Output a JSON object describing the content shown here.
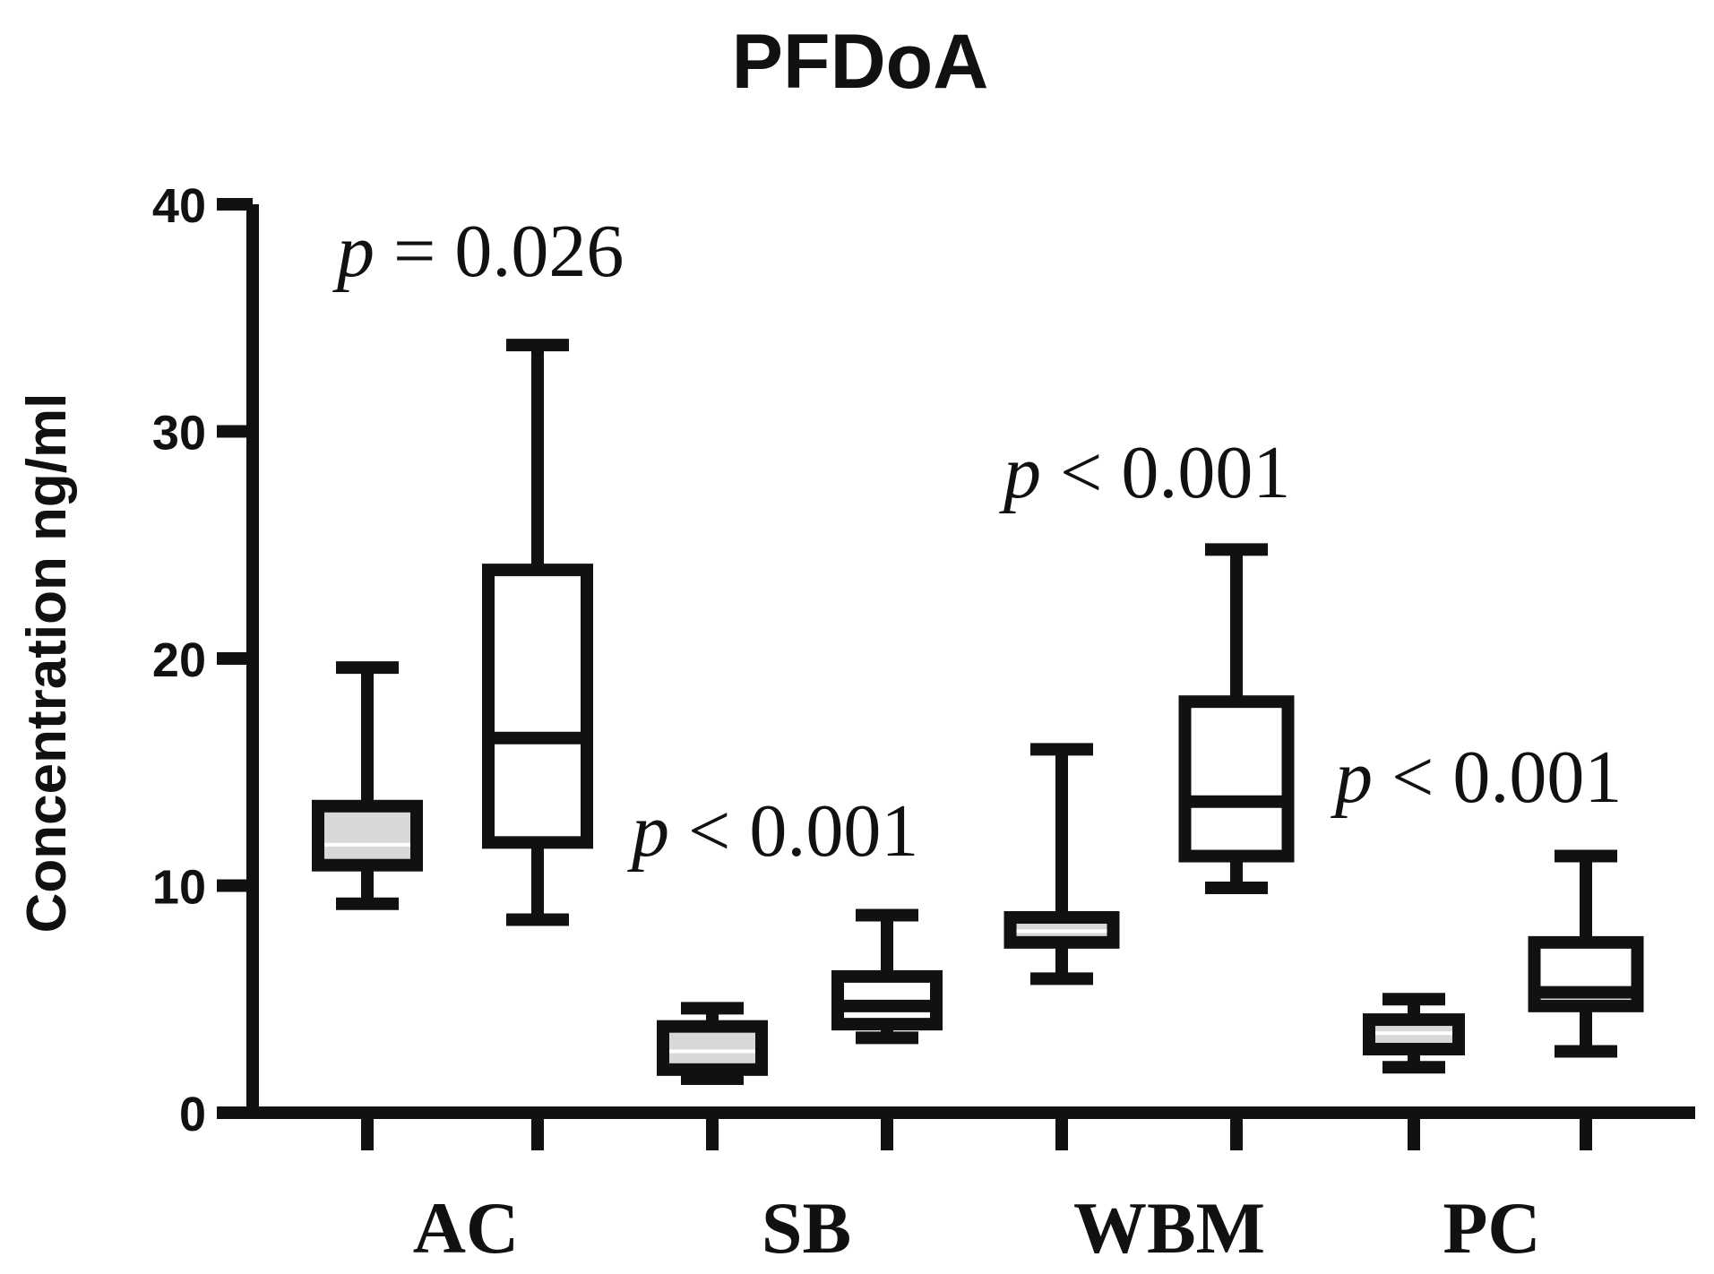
{
  "chart_data": {
    "type": "box",
    "title": "PFDoA",
    "xlabel": "",
    "ylabel": "Concentration ng/ml",
    "ylim": [
      0,
      40
    ],
    "yticks": [
      0,
      10,
      20,
      30,
      40
    ],
    "groups": [
      {
        "label": "AC",
        "p_prefix": "p",
        "p_rest": " = 0.026",
        "boxes": [
          {
            "min": 9.2,
            "q1": 10.9,
            "median": 11.8,
            "q3": 13.5,
            "max": 19.6,
            "fill": "#d8d8d8"
          },
          {
            "min": 8.5,
            "q1": 11.9,
            "median": 16.5,
            "q3": 23.9,
            "max": 33.8,
            "fill": "#ffffff"
          }
        ]
      },
      {
        "label": "SB",
        "p_prefix": "p",
        "p_rest": " < 0.001",
        "boxes": [
          {
            "min": 1.5,
            "q1": 1.9,
            "median": 2.7,
            "q3": 3.8,
            "max": 4.6,
            "fill": "#d8d8d8"
          },
          {
            "min": 3.3,
            "q1": 3.9,
            "median": 4.7,
            "q3": 6.0,
            "max": 8.7,
            "fill": "#ffffff"
          }
        ]
      },
      {
        "label": "WBM",
        "p_prefix": "p",
        "p_rest": " < 0.001",
        "boxes": [
          {
            "min": 5.9,
            "q1": 7.5,
            "median": 8.0,
            "q3": 8.6,
            "max": 16.0,
            "fill": "#d8d8d8"
          },
          {
            "min": 9.9,
            "q1": 11.3,
            "median": 13.7,
            "q3": 18.1,
            "max": 24.8,
            "fill": "#ffffff"
          }
        ]
      },
      {
        "label": "PC",
        "p_prefix": "p",
        "p_rest": " < 0.001",
        "boxes": [
          {
            "min": 2.0,
            "q1": 2.8,
            "median": 3.5,
            "q3": 4.1,
            "max": 5.0,
            "fill": "#d8d8d8"
          },
          {
            "min": 2.7,
            "q1": 4.7,
            "median": 5.3,
            "q3": 7.5,
            "max": 11.3,
            "fill": "#ffffff"
          }
        ]
      }
    ]
  }
}
